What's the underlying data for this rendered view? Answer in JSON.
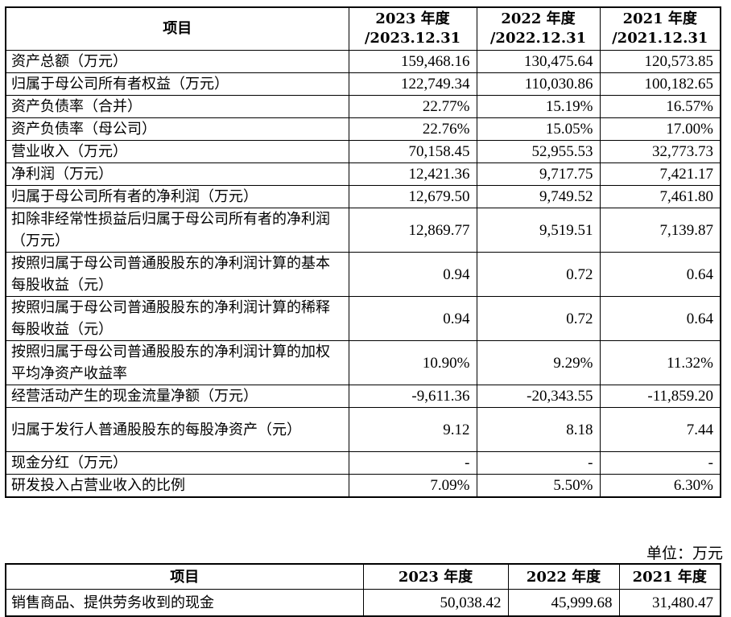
{
  "table1": {
    "headers": [
      "项目",
      "2023 年度\n/2023.12.31",
      "2022 年度\n/2022.12.31",
      "2021 年度\n/2021.12.31"
    ],
    "rows": [
      {
        "label": "资产总额（万元）",
        "values": [
          "159,468.16",
          "130,475.64",
          "120,573.85"
        ]
      },
      {
        "label": "归属于母公司所有者权益（万元）",
        "values": [
          "122,749.34",
          "110,030.86",
          "100,182.65"
        ]
      },
      {
        "label": "资产负债率（合并）",
        "values": [
          "22.77%",
          "15.19%",
          "16.57%"
        ]
      },
      {
        "label": "资产负债率（母公司）",
        "values": [
          "22.76%",
          "15.05%",
          "17.00%"
        ]
      },
      {
        "label": "营业收入（万元）",
        "values": [
          "70,158.45",
          "52,955.53",
          "32,773.73"
        ]
      },
      {
        "label": "净利润（万元）",
        "values": [
          "12,421.36",
          "9,717.75",
          "7,421.17"
        ]
      },
      {
        "label": "归属于母公司所有者的净利润（万元）",
        "values": [
          "12,679.50",
          "9,749.52",
          "7,461.80"
        ]
      },
      {
        "label": "扣除非经常性损益后归属于母公司所有者的净利润（万元）",
        "values": [
          "12,869.77",
          "9,519.51",
          "7,139.87"
        ]
      },
      {
        "label": "按照归属于母公司普通股股东的净利润计算的基本每股收益（元）",
        "values": [
          "0.94",
          "0.72",
          "0.64"
        ]
      },
      {
        "label": "按照归属于母公司普通股股东的净利润计算的稀释每股收益（元）",
        "values": [
          "0.94",
          "0.72",
          "0.64"
        ]
      },
      {
        "label": "按照归属于母公司普通股股东的净利润计算的加权平均净资产收益率",
        "values": [
          "10.90%",
          "9.29%",
          "11.32%"
        ]
      },
      {
        "label": "经营活动产生的现金流量净额（万元）",
        "values": [
          "-9,611.36",
          "-20,343.55",
          "-11,859.20"
        ]
      },
      {
        "label": "归属于发行人普通股股东的每股净资产（元）",
        "values": [
          "9.12",
          "8.18",
          "7.44"
        ]
      },
      {
        "label": "现金分红（万元）",
        "values": [
          "-",
          "-",
          "-"
        ]
      },
      {
        "label": "研发投入占营业收入的比例",
        "values": [
          "7.09%",
          "5.50%",
          "6.30%"
        ]
      }
    ]
  },
  "unit_label": "单位：万元",
  "table2": {
    "headers": [
      "项目",
      "2023 年度",
      "2022 年度",
      "2021 年度"
    ],
    "rows": [
      {
        "label": "销售商品、提供劳务收到的现金",
        "values": [
          "50,038.42",
          "45,999.68",
          "31,480.47"
        ]
      }
    ]
  }
}
